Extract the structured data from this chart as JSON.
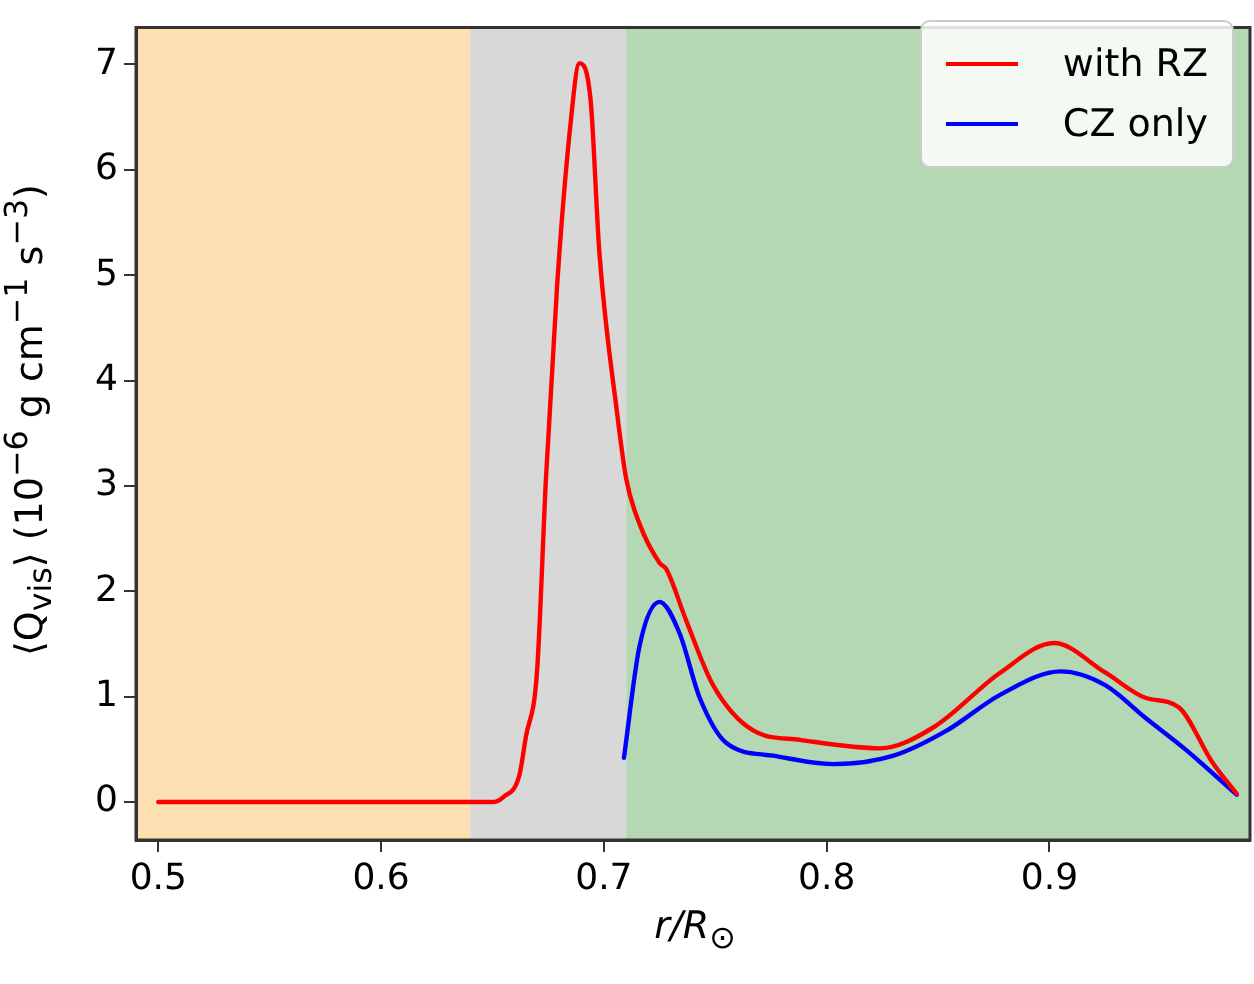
{
  "chart_data": {
    "type": "line",
    "xlabel": "r/R$_{⊙}$",
    "ylabel": "⟨Q$_{vis}$⟩ (10$^{−6}$ g cm$^{−1}$ s$^{−3}$)",
    "xlim": [
      0.49,
      0.99
    ],
    "xticks": [
      0.5,
      0.6,
      0.7,
      0.8,
      0.9
    ],
    "ylim": [
      -0.36,
      7.35
    ],
    "yticks": [
      0,
      1,
      2,
      3,
      4,
      5,
      6,
      7
    ],
    "grid": false,
    "legend": "top right",
    "marker": "none",
    "line_style": "solid",
    "bands": [
      {
        "axis": "x",
        "from": 0.49,
        "to": 0.64,
        "color": "#fde0b2"
      },
      {
        "axis": "x",
        "from": 0.64,
        "to": 0.71,
        "color": "#d8d8d8"
      },
      {
        "axis": "x",
        "from": 0.71,
        "to": 0.99,
        "color": "#b3d8b3"
      }
    ],
    "series": [
      {
        "name": "with RZ",
        "color": "#ff0000",
        "x": [
          0.5,
          0.6,
          0.65,
          0.655,
          0.662,
          0.665,
          0.67,
          0.674,
          0.679,
          0.685,
          0.689,
          0.694,
          0.698,
          0.706,
          0.71,
          0.716,
          0.725,
          0.728,
          0.737,
          0.749,
          0.767,
          0.788,
          0.824,
          0.848,
          0.878,
          0.902,
          0.925,
          0.943,
          0.958,
          0.973,
          0.984
        ],
        "values": [
          0,
          0,
          0,
          0.05,
          0.25,
          0.62,
          1.24,
          3.07,
          4.9,
          6.43,
          7.01,
          6.67,
          5.21,
          3.68,
          3.07,
          2.64,
          2.27,
          2.21,
          1.72,
          1.11,
          0.68,
          0.59,
          0.51,
          0.71,
          1.23,
          1.51,
          1.23,
          0.99,
          0.9,
          0.38,
          0.08
        ]
      },
      {
        "name": "CZ only",
        "color": "#0000ff",
        "x": [
          0.709,
          0.716,
          0.725,
          0.734,
          0.743,
          0.755,
          0.776,
          0.803,
          0.83,
          0.854,
          0.878,
          0.905,
          0.925,
          0.943,
          0.961,
          0.984
        ],
        "values": [
          0.42,
          1.48,
          1.9,
          1.6,
          0.99,
          0.56,
          0.44,
          0.36,
          0.44,
          0.68,
          1.02,
          1.24,
          1.11,
          0.8,
          0.5,
          0.07
        ]
      }
    ]
  }
}
